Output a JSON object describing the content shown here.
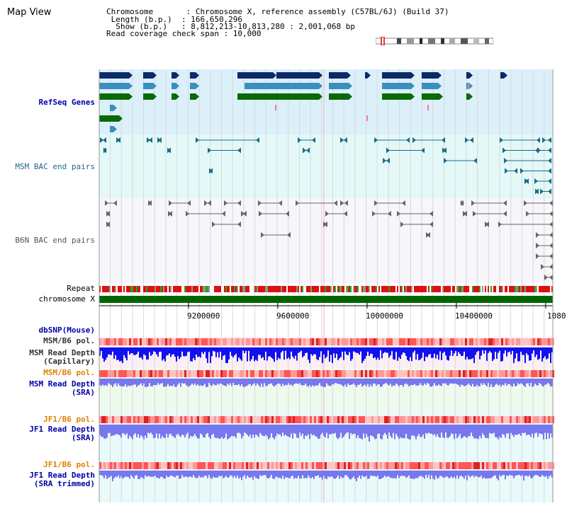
{
  "page": {
    "title": "Map View"
  },
  "info": {
    "chromosome_line": "Chromosome       : Chromosome X, reference assembly (C57BL/6J) (Build 37)",
    "length_line": " Length (b.p.)  : 166,650,296",
    "show_line": "  Show (b.p.)   : 8,812,213-10,813,280 : 2,001,068 bp",
    "coverage_line": "Read coverage check span : 10,000"
  },
  "tracks": {
    "refseq": "RefSeq Genes",
    "msm_bac": "MSM BAC end pairs",
    "b6n_bac": "B6N BAC end pairs",
    "repeat": "Repeat",
    "chromosome": "chromosome X",
    "dbsnp": "dbSNP(Mouse)",
    "msm_pol_cap": "MSM/B6 pol.",
    "msm_depth_cap": "MSM Read Depth\n(Capillary)",
    "msm_pol_sra": "MSM/B6 pol.",
    "msm_depth_sra": "MSM Read Depth\n(SRA)",
    "jf1_pol": "JF1/B6 pol.",
    "jf1_depth_sra": "JF1 Read Depth\n(SRA)",
    "jf1_pol2": "JF1/B6 pol.",
    "jf1_depth_trim": "JF1 Read Depth\n(SRA trimmed)"
  },
  "axis": {
    "ticks": [
      "9200000",
      "9600000",
      "10000000",
      "10400000",
      "1080"
    ]
  },
  "colors": {
    "refseq_bg": "#e0f0fa",
    "bac_bg": "#e8f8f8",
    "b6n_bg": "#f7f7fb",
    "chromosome": "#006400",
    "depth_cap": "#0000ee",
    "depth_sra": "#7777ee",
    "pol": "#ee6666"
  }
}
